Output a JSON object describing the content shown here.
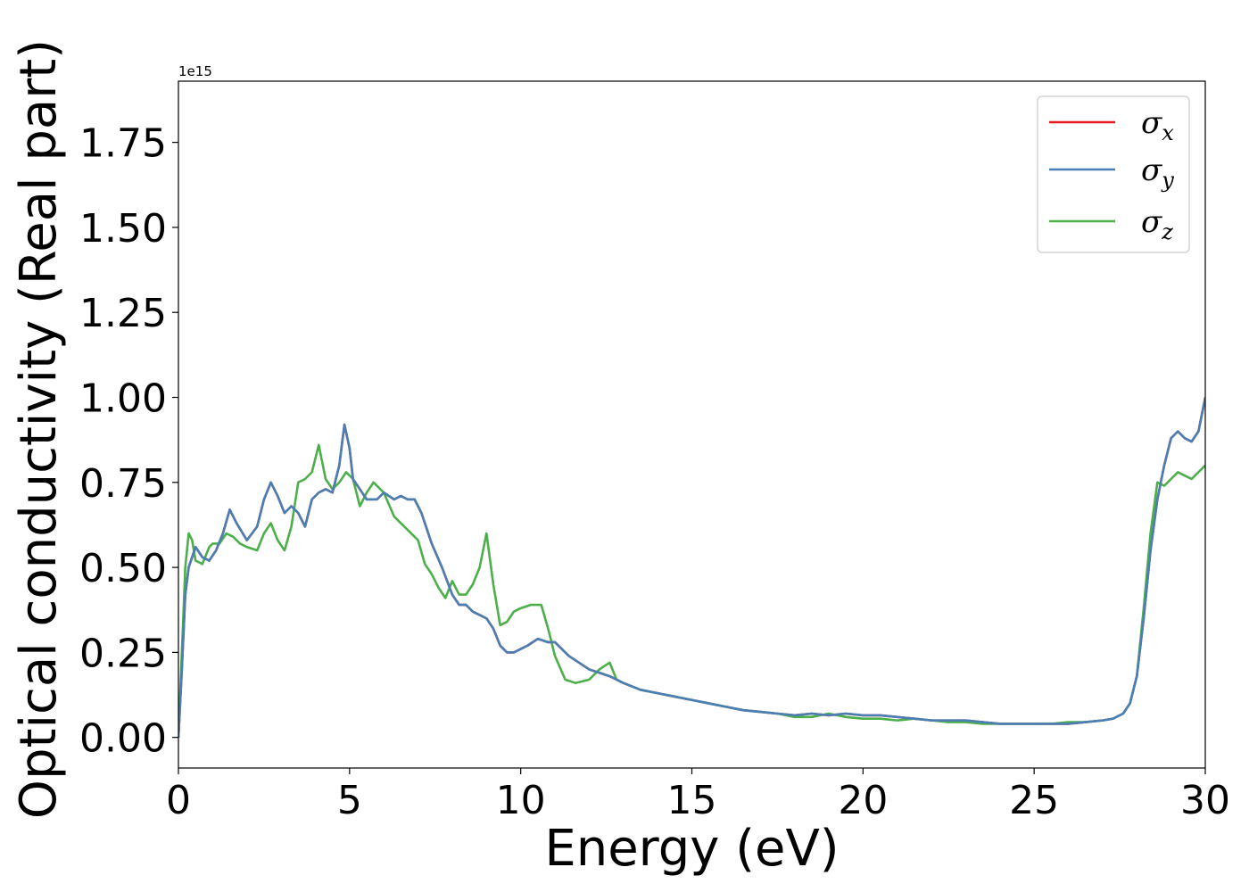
{
  "chart_data": {
    "type": "line",
    "xlabel": "Energy (eV)",
    "ylabel": "Optical conductivity (Real part)",
    "y_offset_label": "1e15",
    "xlim": [
      0,
      30
    ],
    "ylim": [
      -0.09,
      1.93
    ],
    "xticks": [
      0,
      5,
      10,
      15,
      20,
      25,
      30
    ],
    "xtick_labels": [
      "0",
      "5",
      "10",
      "15",
      "20",
      "25",
      "30"
    ],
    "yticks": [
      0.0,
      0.25,
      0.5,
      0.75,
      1.0,
      1.25,
      1.5,
      1.75
    ],
    "ytick_labels": [
      "0.00",
      "0.25",
      "0.50",
      "0.75",
      "1.00",
      "1.25",
      "1.50",
      "1.75"
    ],
    "legend_position": "top-right",
    "grid": false,
    "series": [
      {
        "name": "σ_x",
        "color": "#e41a1c",
        "x": [
          0,
          0.1,
          0.2,
          0.3,
          0.5,
          0.7,
          0.9,
          1.1,
          1.3,
          1.5,
          1.7,
          2.0,
          2.3,
          2.5,
          2.7,
          2.9,
          3.1,
          3.3,
          3.5,
          3.7,
          3.9,
          4.1,
          4.3,
          4.5,
          4.7,
          4.85,
          5.0,
          5.1,
          5.3,
          5.5,
          5.8,
          6.0,
          6.3,
          6.5,
          6.7,
          6.9,
          7.1,
          7.4,
          7.7,
          8.0,
          8.2,
          8.4,
          8.6,
          8.8,
          9.0,
          9.2,
          9.4,
          9.6,
          9.8,
          10.0,
          10.2,
          10.5,
          10.8,
          11.0,
          11.2,
          11.4,
          11.7,
          12.0,
          12.3,
          12.6,
          13.0,
          13.5,
          14.0,
          14.5,
          15.0,
          15.5,
          16.0,
          16.5,
          17.0,
          17.5,
          18.0,
          18.5,
          19.0,
          19.5,
          20.0,
          20.5,
          21.0,
          21.5,
          22.0,
          22.5,
          23.0,
          23.5,
          24.0,
          24.5,
          25.0,
          25.5,
          26.0,
          26.5,
          27.0,
          27.3,
          27.6,
          27.8,
          28.0,
          28.2,
          28.4,
          28.6,
          28.8,
          29.0,
          29.2,
          29.4,
          29.6,
          29.8,
          30.0
        ],
        "values": [
          0.0,
          0.2,
          0.42,
          0.5,
          0.56,
          0.53,
          0.52,
          0.55,
          0.6,
          0.67,
          0.63,
          0.58,
          0.62,
          0.7,
          0.75,
          0.71,
          0.66,
          0.68,
          0.66,
          0.62,
          0.7,
          0.72,
          0.73,
          0.72,
          0.8,
          0.92,
          0.85,
          0.76,
          0.73,
          0.7,
          0.7,
          0.72,
          0.7,
          0.71,
          0.7,
          0.7,
          0.66,
          0.57,
          0.5,
          0.42,
          0.39,
          0.39,
          0.37,
          0.36,
          0.35,
          0.32,
          0.27,
          0.25,
          0.25,
          0.26,
          0.27,
          0.29,
          0.28,
          0.28,
          0.26,
          0.24,
          0.22,
          0.2,
          0.19,
          0.18,
          0.16,
          0.14,
          0.13,
          0.12,
          0.11,
          0.1,
          0.09,
          0.08,
          0.075,
          0.07,
          0.065,
          0.07,
          0.065,
          0.07,
          0.065,
          0.065,
          0.06,
          0.055,
          0.05,
          0.05,
          0.05,
          0.045,
          0.04,
          0.04,
          0.04,
          0.04,
          0.04,
          0.045,
          0.05,
          0.055,
          0.07,
          0.1,
          0.18,
          0.35,
          0.55,
          0.7,
          0.8,
          0.88,
          0.9,
          0.88,
          0.87,
          0.9,
          1.0
        ]
      },
      {
        "name": "σ_y",
        "color": "#4a7fb5",
        "x": [
          0,
          0.1,
          0.2,
          0.3,
          0.5,
          0.7,
          0.9,
          1.1,
          1.3,
          1.5,
          1.7,
          2.0,
          2.3,
          2.5,
          2.7,
          2.9,
          3.1,
          3.3,
          3.5,
          3.7,
          3.9,
          4.1,
          4.3,
          4.5,
          4.7,
          4.85,
          5.0,
          5.1,
          5.3,
          5.5,
          5.8,
          6.0,
          6.3,
          6.5,
          6.7,
          6.9,
          7.1,
          7.4,
          7.7,
          8.0,
          8.2,
          8.4,
          8.6,
          8.8,
          9.0,
          9.2,
          9.4,
          9.6,
          9.8,
          10.0,
          10.2,
          10.5,
          10.8,
          11.0,
          11.2,
          11.4,
          11.7,
          12.0,
          12.3,
          12.6,
          13.0,
          13.5,
          14.0,
          14.5,
          15.0,
          15.5,
          16.0,
          16.5,
          17.0,
          17.5,
          18.0,
          18.5,
          19.0,
          19.5,
          20.0,
          20.5,
          21.0,
          21.5,
          22.0,
          22.5,
          23.0,
          23.5,
          24.0,
          24.5,
          25.0,
          25.5,
          26.0,
          26.5,
          27.0,
          27.3,
          27.6,
          27.8,
          28.0,
          28.2,
          28.4,
          28.6,
          28.8,
          29.0,
          29.2,
          29.4,
          29.6,
          29.8,
          30.0
        ],
        "values": [
          0.0,
          0.2,
          0.42,
          0.5,
          0.56,
          0.53,
          0.52,
          0.55,
          0.6,
          0.67,
          0.63,
          0.58,
          0.62,
          0.7,
          0.75,
          0.71,
          0.66,
          0.68,
          0.66,
          0.62,
          0.7,
          0.72,
          0.73,
          0.72,
          0.8,
          0.92,
          0.85,
          0.76,
          0.73,
          0.7,
          0.7,
          0.72,
          0.7,
          0.71,
          0.7,
          0.7,
          0.66,
          0.57,
          0.5,
          0.42,
          0.39,
          0.39,
          0.37,
          0.36,
          0.35,
          0.32,
          0.27,
          0.25,
          0.25,
          0.26,
          0.27,
          0.29,
          0.28,
          0.28,
          0.26,
          0.24,
          0.22,
          0.2,
          0.19,
          0.18,
          0.16,
          0.14,
          0.13,
          0.12,
          0.11,
          0.1,
          0.09,
          0.08,
          0.075,
          0.07,
          0.065,
          0.07,
          0.065,
          0.07,
          0.065,
          0.065,
          0.06,
          0.055,
          0.05,
          0.05,
          0.05,
          0.045,
          0.04,
          0.04,
          0.04,
          0.04,
          0.04,
          0.045,
          0.05,
          0.055,
          0.07,
          0.1,
          0.18,
          0.35,
          0.55,
          0.7,
          0.8,
          0.88,
          0.9,
          0.88,
          0.87,
          0.9,
          1.0
        ]
      },
      {
        "name": "σ_z",
        "color": "#4daf4a",
        "x": [
          0,
          0.1,
          0.2,
          0.3,
          0.4,
          0.5,
          0.7,
          0.9,
          1.0,
          1.2,
          1.4,
          1.6,
          1.8,
          2.0,
          2.3,
          2.5,
          2.7,
          2.9,
          3.1,
          3.3,
          3.5,
          3.7,
          3.9,
          4.1,
          4.3,
          4.5,
          4.7,
          4.9,
          5.1,
          5.3,
          5.5,
          5.7,
          6.0,
          6.3,
          6.5,
          6.8,
          7.0,
          7.2,
          7.4,
          7.6,
          7.8,
          8.0,
          8.2,
          8.4,
          8.6,
          8.8,
          9.0,
          9.2,
          9.4,
          9.6,
          9.8,
          10.0,
          10.3,
          10.6,
          10.8,
          11.0,
          11.3,
          11.6,
          12.0,
          12.3,
          12.6,
          12.8,
          13.0,
          13.5,
          14.0,
          14.5,
          15.0,
          15.5,
          16.0,
          16.5,
          17.0,
          17.5,
          18.0,
          18.5,
          19.0,
          19.5,
          20.0,
          20.5,
          21.0,
          21.5,
          22.0,
          22.5,
          23.0,
          23.5,
          24.0,
          24.5,
          25.0,
          25.5,
          26.0,
          26.5,
          27.0,
          27.3,
          27.6,
          27.8,
          28.0,
          28.2,
          28.4,
          28.6,
          28.8,
          29.0,
          29.2,
          29.4,
          29.6,
          29.8,
          30.0
        ],
        "values": [
          0.0,
          0.25,
          0.5,
          0.6,
          0.58,
          0.52,
          0.51,
          0.56,
          0.57,
          0.57,
          0.6,
          0.59,
          0.57,
          0.56,
          0.55,
          0.6,
          0.63,
          0.58,
          0.55,
          0.62,
          0.75,
          0.76,
          0.78,
          0.86,
          0.76,
          0.73,
          0.75,
          0.78,
          0.76,
          0.68,
          0.72,
          0.75,
          0.72,
          0.65,
          0.63,
          0.6,
          0.58,
          0.51,
          0.48,
          0.44,
          0.41,
          0.46,
          0.42,
          0.42,
          0.45,
          0.5,
          0.6,
          0.45,
          0.33,
          0.34,
          0.37,
          0.38,
          0.39,
          0.39,
          0.32,
          0.24,
          0.17,
          0.16,
          0.17,
          0.2,
          0.22,
          0.17,
          0.16,
          0.14,
          0.13,
          0.12,
          0.11,
          0.1,
          0.09,
          0.08,
          0.075,
          0.07,
          0.06,
          0.06,
          0.07,
          0.06,
          0.055,
          0.055,
          0.05,
          0.055,
          0.05,
          0.045,
          0.045,
          0.04,
          0.04,
          0.04,
          0.04,
          0.04,
          0.045,
          0.045,
          0.05,
          0.055,
          0.07,
          0.1,
          0.18,
          0.38,
          0.6,
          0.75,
          0.74,
          0.76,
          0.78,
          0.77,
          0.76,
          0.78,
          0.8
        ]
      }
    ]
  }
}
